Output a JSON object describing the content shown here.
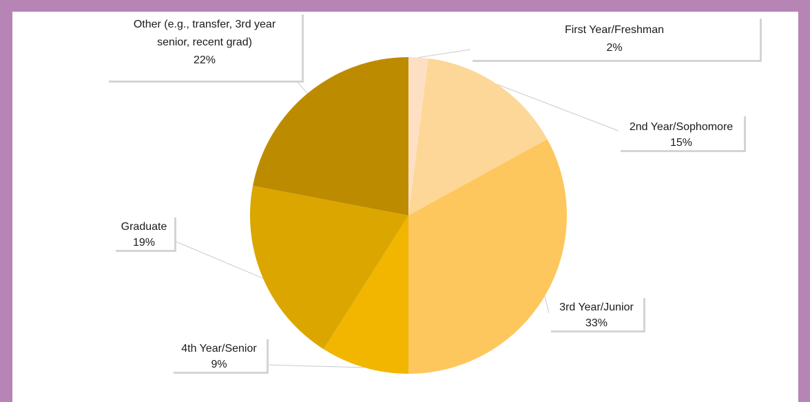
{
  "chart_data": {
    "type": "pie",
    "slices": [
      {
        "label": "First Year/Freshman",
        "value": 2,
        "value_label": "2%",
        "color": "#fde0c4"
      },
      {
        "label": "2nd Year/Sophomore",
        "value": 15,
        "value_label": "15%",
        "color": "#fdd797"
      },
      {
        "label": "3rd Year/Junior",
        "value": 33,
        "value_label": "33%",
        "color": "#fdc75d"
      },
      {
        "label": "4th Year/Senior",
        "value": 9,
        "value_label": "9%",
        "color": "#f2b600"
      },
      {
        "label": "Graduate",
        "value": 19,
        "value_label": "19%",
        "color": "#dba600"
      },
      {
        "label": "Other (e.g., transfer, 3rd year senior, recent grad)",
        "value": 22,
        "value_label": "22%",
        "color": "#bd8b00"
      }
    ]
  }
}
